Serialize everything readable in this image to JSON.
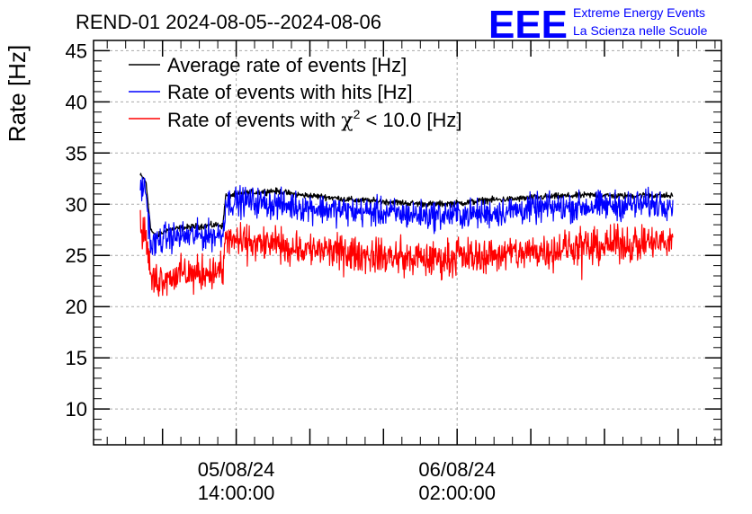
{
  "chart_data": {
    "type": "line",
    "title": "REND-01 2024-08-05--2024-08-06",
    "ylabel": "Rate [Hz]",
    "xlabel": "",
    "ylim": [
      6.5,
      46
    ],
    "yticks": [
      10,
      15,
      20,
      25,
      30,
      35,
      40,
      45
    ],
    "xlim": [
      0,
      1
    ],
    "grid": true,
    "legend_position": "top-left",
    "xticks": [
      {
        "pos": 0.18,
        "date": "05/08/24",
        "time": "14:00:00"
      },
      {
        "pos": 0.595,
        "date": "06/08/24",
        "time": "02:00:00"
      }
    ],
    "series": [
      {
        "name": "Average rate of events [Hz]",
        "color": "#000000",
        "noise": 0.15,
        "points": [
          [
            0.0,
            32.8
          ],
          [
            0.01,
            32.3
          ],
          [
            0.02,
            27.5
          ],
          [
            0.03,
            26.8
          ],
          [
            0.05,
            27.5
          ],
          [
            0.1,
            27.8
          ],
          [
            0.15,
            28.0
          ],
          [
            0.155,
            27.8
          ],
          [
            0.16,
            30.8
          ],
          [
            0.2,
            31.1
          ],
          [
            0.25,
            31.3
          ],
          [
            0.3,
            30.9
          ],
          [
            0.35,
            30.7
          ],
          [
            0.4,
            30.4
          ],
          [
            0.45,
            30.3
          ],
          [
            0.5,
            30.1
          ],
          [
            0.55,
            30.0
          ],
          [
            0.6,
            30.1
          ],
          [
            0.65,
            30.4
          ],
          [
            0.7,
            30.5
          ],
          [
            0.75,
            30.7
          ],
          [
            0.8,
            30.8
          ],
          [
            0.85,
            30.9
          ],
          [
            0.9,
            30.8
          ],
          [
            0.95,
            30.9
          ],
          [
            1.0,
            30.8
          ]
        ]
      },
      {
        "name": "Rate of events with hits [Hz]",
        "color": "#0000ff",
        "noise": 0.7,
        "points": [
          [
            0.0,
            31.7
          ],
          [
            0.01,
            31.5
          ],
          [
            0.02,
            25.8
          ],
          [
            0.03,
            26.3
          ],
          [
            0.05,
            26.8
          ],
          [
            0.1,
            26.9
          ],
          [
            0.15,
            27.0
          ],
          [
            0.155,
            27.0
          ],
          [
            0.16,
            30.2
          ],
          [
            0.2,
            30.3
          ],
          [
            0.25,
            30.0
          ],
          [
            0.3,
            29.8
          ],
          [
            0.35,
            29.5
          ],
          [
            0.4,
            29.3
          ],
          [
            0.45,
            29.2
          ],
          [
            0.5,
            29.0
          ],
          [
            0.55,
            28.9
          ],
          [
            0.6,
            29.0
          ],
          [
            0.65,
            29.1
          ],
          [
            0.7,
            29.4
          ],
          [
            0.75,
            29.6
          ],
          [
            0.8,
            29.7
          ],
          [
            0.85,
            29.8
          ],
          [
            0.9,
            29.9
          ],
          [
            0.95,
            30.0
          ],
          [
            1.0,
            30.1
          ]
        ]
      },
      {
        "name": "Rate of events with χ2 < 10.0 [Hz]",
        "color": "#ff0000",
        "noise": 0.85,
        "points": [
          [
            0.0,
            27.5
          ],
          [
            0.01,
            27.2
          ],
          [
            0.02,
            22.5
          ],
          [
            0.05,
            22.9
          ],
          [
            0.1,
            23.2
          ],
          [
            0.15,
            23.4
          ],
          [
            0.155,
            23.3
          ],
          [
            0.16,
            26.5
          ],
          [
            0.2,
            26.3
          ],
          [
            0.25,
            26.0
          ],
          [
            0.3,
            25.7
          ],
          [
            0.35,
            25.4
          ],
          [
            0.4,
            25.1
          ],
          [
            0.45,
            24.9
          ],
          [
            0.5,
            24.7
          ],
          [
            0.55,
            24.6
          ],
          [
            0.6,
            24.9
          ],
          [
            0.65,
            25.0
          ],
          [
            0.7,
            25.2
          ],
          [
            0.75,
            25.5
          ],
          [
            0.8,
            25.7
          ],
          [
            0.85,
            25.9
          ],
          [
            0.9,
            26.1
          ],
          [
            0.95,
            26.2
          ],
          [
            1.0,
            26.3
          ]
        ]
      }
    ]
  },
  "legend": {
    "item0": "Average rate of events [Hz]",
    "item1": "Rate of events with hits [Hz]",
    "item2_prefix": "Rate of events with ",
    "item2_chi": "χ",
    "item2_sup": "2",
    "item2_suffix": " < 10.0 [Hz]"
  },
  "logo": {
    "mark": "EEE",
    "line1": "Extreme Energy Events",
    "line2": "La Scienza nelle Scuole",
    "color": "#0000ff"
  }
}
